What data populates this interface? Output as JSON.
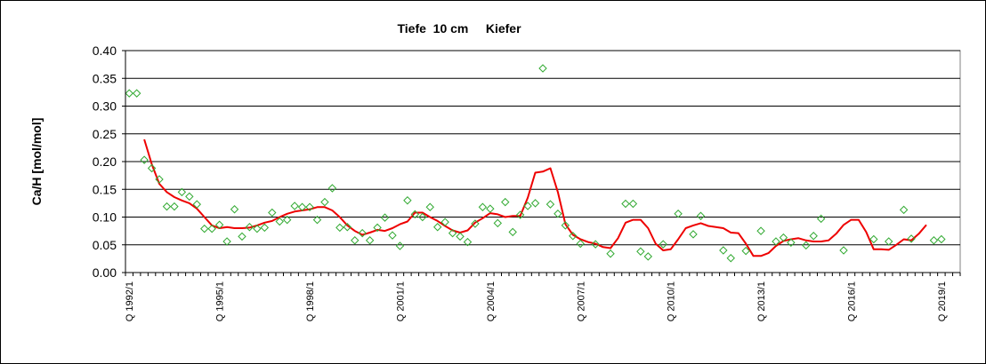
{
  "chart_data": {
    "type": "line",
    "title": "Tiefe  10 cm     Kiefer",
    "ylabel": "Ca/H [mol/mol]",
    "xlabel": "",
    "ylim": [
      0,
      0.4
    ],
    "y_ticks": [
      "0.00",
      "0.05",
      "0.10",
      "0.15",
      "0.20",
      "0.25",
      "0.30",
      "0.35",
      "0.40"
    ],
    "x_tick_labels": [
      "Q 1992/1",
      "Q 1995/1",
      "Q 1998/1",
      "Q 2001/1",
      "Q 2004/1",
      "Q 2007/1",
      "Q 2010/1",
      "Q 2013/1",
      "Q 2016/1",
      "Q 2019/1"
    ],
    "grid": "horizontal",
    "colors": {
      "points": "#33aa33",
      "line": "#ee0000",
      "plot_bg": "#ffffff"
    },
    "series": [
      {
        "type": "scatter",
        "x": [
          1992.0,
          1992.25,
          1992.5,
          1992.75,
          1993.0,
          1993.25,
          1993.5,
          1993.75,
          1994.0,
          1994.25,
          1994.5,
          1994.75,
          1995.0,
          1995.25,
          1995.5,
          1995.75,
          1996.0,
          1996.25,
          1996.5,
          1996.75,
          1997.0,
          1997.25,
          1997.5,
          1997.75,
          1998.0,
          1998.25,
          1998.5,
          1998.75,
          1999.0,
          1999.25,
          1999.5,
          1999.75,
          2000.0,
          2000.25,
          2000.5,
          2000.75,
          2001.0,
          2001.25,
          2001.5,
          2001.75,
          2002.0,
          2002.25,
          2002.5,
          2002.75,
          2003.0,
          2003.25,
          2003.5,
          2003.75,
          2004.0,
          2004.25,
          2004.5,
          2004.75,
          2005.0,
          2005.25,
          2005.5,
          2005.75,
          2006.0,
          2006.25,
          2006.5,
          2006.75,
          2007.0,
          2007.5,
          2008.0,
          2008.5,
          2008.75,
          2009.0,
          2009.25,
          2009.75,
          2010.25,
          2010.75,
          2011.0,
          2011.75,
          2012.0,
          2012.5,
          2013.0,
          2013.5,
          2013.75,
          2014.0,
          2014.5,
          2014.75,
          2015.0,
          2015.75,
          2016.75,
          2017.25,
          2017.75,
          2018.0,
          2018.75,
          2019.0
        ],
        "values": [
          0.323,
          0.323,
          0.203,
          0.188,
          0.168,
          0.119,
          0.119,
          0.145,
          0.137,
          0.123,
          0.079,
          0.079,
          0.086,
          0.056,
          0.114,
          0.065,
          0.082,
          0.079,
          0.081,
          0.108,
          0.092,
          0.095,
          0.12,
          0.118,
          0.118,
          0.095,
          0.127,
          0.152,
          0.081,
          0.082,
          0.058,
          0.071,
          0.058,
          0.081,
          0.099,
          0.067,
          0.048,
          0.13,
          0.105,
          0.1,
          0.118,
          0.082,
          0.091,
          0.071,
          0.065,
          0.055,
          0.088,
          0.118,
          0.115,
          0.089,
          0.127,
          0.073,
          0.104,
          0.12,
          0.125,
          0.368,
          0.123,
          0.106,
          0.085,
          0.066,
          0.052,
          0.051,
          0.034,
          0.124,
          0.124,
          0.038,
          0.029,
          0.051,
          0.106,
          0.069,
          0.102,
          0.04,
          0.026,
          0.039,
          0.075,
          0.056,
          0.063,
          0.054,
          0.049,
          0.066,
          0.097,
          0.04,
          0.06,
          0.056,
          0.113,
          0.061,
          0.058,
          0.06
        ]
      },
      {
        "type": "line",
        "x": [
          1992.5,
          1992.75,
          1993.0,
          1993.25,
          1993.5,
          1993.75,
          1994.0,
          1994.25,
          1994.5,
          1994.75,
          1995.0,
          1995.25,
          1995.5,
          1995.75,
          1996.0,
          1996.25,
          1996.5,
          1996.75,
          1997.0,
          1997.25,
          1997.5,
          1997.75,
          1998.0,
          1998.25,
          1998.5,
          1998.75,
          1999.0,
          1999.25,
          1999.5,
          1999.75,
          2000.0,
          2000.25,
          2000.5,
          2000.75,
          2001.0,
          2001.25,
          2001.5,
          2001.75,
          2002.0,
          2002.25,
          2002.5,
          2002.75,
          2003.0,
          2003.25,
          2003.5,
          2003.75,
          2004.0,
          2004.25,
          2004.5,
          2004.75,
          2005.0,
          2005.25,
          2005.5,
          2005.75,
          2006.0,
          2006.25,
          2006.5,
          2006.75,
          2007.0,
          2007.25,
          2007.5,
          2007.75,
          2008.0,
          2008.25,
          2008.5,
          2008.75,
          2009.0,
          2009.25,
          2009.5,
          2009.75,
          2010.0,
          2010.25,
          2010.5,
          2010.75,
          2011.0,
          2011.25,
          2011.5,
          2011.75,
          2012.0,
          2012.25,
          2012.5,
          2012.75,
          2013.0,
          2013.25,
          2013.5,
          2013.75,
          2014.0,
          2014.25,
          2014.5,
          2014.75,
          2015.0,
          2015.25,
          2015.5,
          2015.75,
          2016.0,
          2016.25,
          2016.5,
          2016.75,
          2017.0,
          2017.25,
          2017.5,
          2017.75,
          2018.0,
          2018.25,
          2018.5
        ],
        "values": [
          0.24,
          0.195,
          0.16,
          0.145,
          0.136,
          0.13,
          0.125,
          0.115,
          0.1,
          0.085,
          0.08,
          0.082,
          0.08,
          0.08,
          0.081,
          0.085,
          0.09,
          0.093,
          0.1,
          0.106,
          0.11,
          0.112,
          0.114,
          0.118,
          0.118,
          0.112,
          0.1,
          0.085,
          0.075,
          0.068,
          0.072,
          0.077,
          0.075,
          0.08,
          0.087,
          0.092,
          0.108,
          0.108,
          0.1,
          0.093,
          0.084,
          0.076,
          0.072,
          0.076,
          0.09,
          0.098,
          0.107,
          0.105,
          0.1,
          0.102,
          0.102,
          0.135,
          0.18,
          0.182,
          0.188,
          0.145,
          0.087,
          0.068,
          0.06,
          0.055,
          0.052,
          0.046,
          0.044,
          0.062,
          0.09,
          0.095,
          0.095,
          0.08,
          0.052,
          0.04,
          0.042,
          0.06,
          0.08,
          0.085,
          0.089,
          0.084,
          0.082,
          0.08,
          0.072,
          0.071,
          0.052,
          0.03,
          0.03,
          0.035,
          0.048,
          0.057,
          0.06,
          0.062,
          0.058,
          0.056,
          0.056,
          0.058,
          0.07,
          0.086,
          0.095,
          0.095,
          0.073,
          0.042,
          0.042,
          0.041,
          0.05,
          0.06,
          0.058,
          0.07,
          0.086
        ]
      }
    ]
  }
}
